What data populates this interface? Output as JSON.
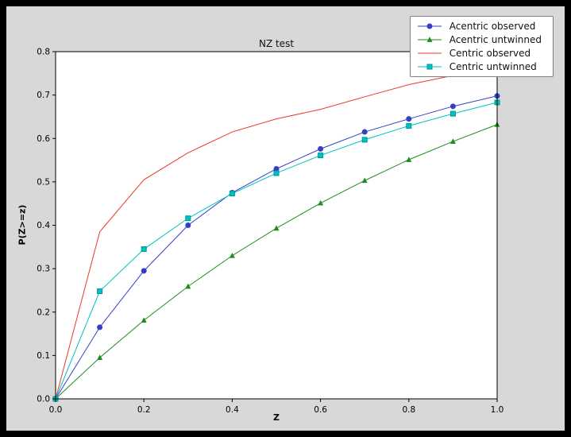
{
  "figure": {
    "page_background": "#000000",
    "figure_background": "#d8d8d8",
    "plot_background": "#ffffff",
    "axes_edge_color": "#000000"
  },
  "chart_data": {
    "type": "line",
    "title": "NZ test",
    "xlabel": "Z",
    "ylabel": "P(Z>=z)",
    "xlim": [
      0.0,
      1.0
    ],
    "ylim": [
      0.0,
      0.8
    ],
    "grid": false,
    "legend_position": "top-right",
    "x_ticks": [
      0.0,
      0.2,
      0.4,
      0.6,
      0.8,
      1.0
    ],
    "y_ticks": [
      0.0,
      0.1,
      0.2,
      0.3,
      0.4,
      0.5,
      0.6,
      0.7,
      0.8
    ],
    "x": [
      0.0,
      0.1,
      0.2,
      0.3,
      0.4,
      0.5,
      0.6,
      0.7,
      0.8,
      0.9,
      1.0
    ],
    "series": [
      {
        "name": "Acentric observed",
        "color": "#3340c4",
        "marker": "circle",
        "values": [
          0.0,
          0.165,
          0.295,
          0.4,
          0.475,
          0.53,
          0.576,
          0.615,
          0.645,
          0.674,
          0.698
        ]
      },
      {
        "name": "Acentric untwinned",
        "color": "#1e8c1e",
        "marker": "triangle",
        "values": [
          0.0,
          0.095,
          0.181,
          0.259,
          0.33,
          0.393,
          0.451,
          0.503,
          0.551,
          0.593,
          0.632
        ]
      },
      {
        "name": "Centric observed",
        "color": "#e83a2a",
        "marker": "none",
        "values": [
          0.0,
          0.385,
          0.505,
          0.567,
          0.615,
          0.645,
          0.667,
          0.696,
          0.724,
          0.745,
          0.763
        ]
      },
      {
        "name": "Centric untwinned",
        "color": "#00c2c2",
        "marker": "square",
        "marker_edge": "#009494",
        "values": [
          0.0,
          0.248,
          0.345,
          0.416,
          0.473,
          0.52,
          0.561,
          0.597,
          0.629,
          0.657,
          0.683
        ]
      }
    ]
  }
}
